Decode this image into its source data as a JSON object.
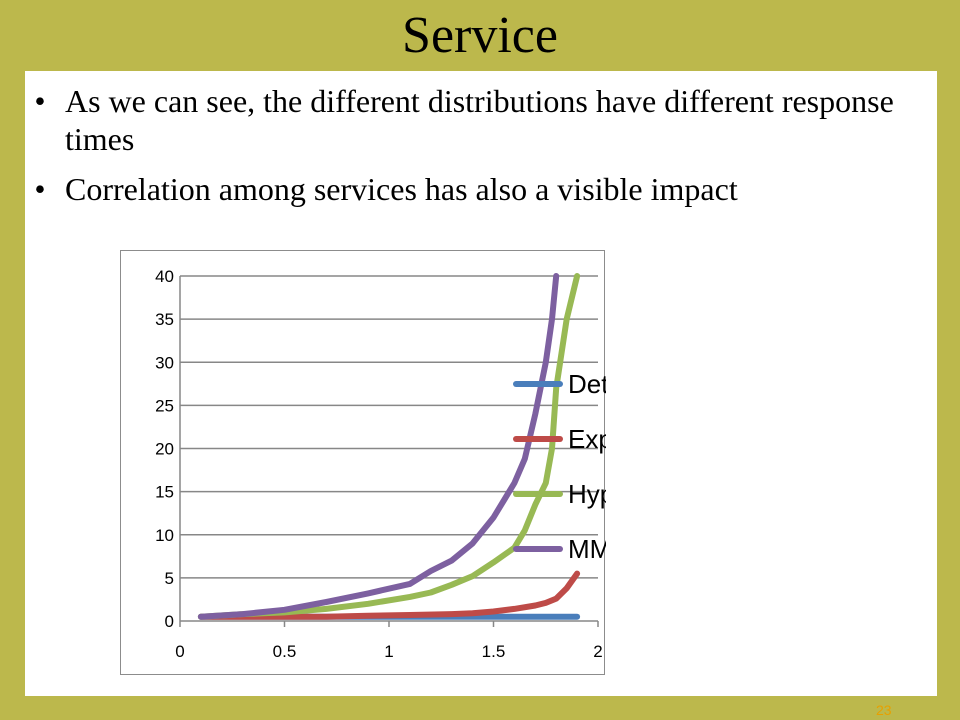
{
  "slide": {
    "title": "Service",
    "bullets": [
      "As we can see, the different distributions have different response times",
      "Correlation among services has also a visible impact"
    ],
    "page_number": "23",
    "colors": {
      "background": "#bcb84c",
      "panel": "#ffffff",
      "page_number": "#e8a000"
    }
  },
  "chart_data": {
    "type": "line",
    "title": "",
    "xlabel": "",
    "ylabel": "",
    "xlim": [
      0,
      2
    ],
    "ylim": [
      0,
      40
    ],
    "x_ticks": [
      "0",
      "0.5",
      "1",
      "1.5",
      "2"
    ],
    "y_ticks": [
      "0",
      "5",
      "10",
      "15",
      "20",
      "25",
      "30",
      "35",
      "40"
    ],
    "grid": "horizontal",
    "legend_position": "right",
    "series": [
      {
        "name": "Det",
        "color": "#4a7ebb",
        "points": [
          [
            0.1,
            0.5
          ],
          [
            0.3,
            0.5
          ],
          [
            0.5,
            0.5
          ],
          [
            0.7,
            0.5
          ],
          [
            0.9,
            0.5
          ],
          [
            1.1,
            0.5
          ],
          [
            1.3,
            0.5
          ],
          [
            1.5,
            0.5
          ],
          [
            1.7,
            0.5
          ],
          [
            1.9,
            0.5
          ]
        ]
      },
      {
        "name": "Exp",
        "color": "#be4b48",
        "points": [
          [
            0.1,
            0.5
          ],
          [
            0.3,
            0.5
          ],
          [
            0.5,
            0.5
          ],
          [
            0.7,
            0.5
          ],
          [
            0.9,
            0.6
          ],
          [
            1.1,
            0.7
          ],
          [
            1.3,
            0.8
          ],
          [
            1.4,
            0.9
          ],
          [
            1.5,
            1.1
          ],
          [
            1.6,
            1.4
          ],
          [
            1.7,
            1.8
          ],
          [
            1.75,
            2.1
          ],
          [
            1.8,
            2.6
          ],
          [
            1.85,
            3.8
          ],
          [
            1.9,
            5.5
          ]
        ]
      },
      {
        "name": "HyperExp",
        "color": "#98b954",
        "points": [
          [
            0.1,
            0.5
          ],
          [
            0.3,
            0.8
          ],
          [
            0.5,
            1.0
          ],
          [
            0.7,
            1.4
          ],
          [
            0.9,
            2.0
          ],
          [
            1.1,
            2.8
          ],
          [
            1.2,
            3.3
          ],
          [
            1.3,
            4.2
          ],
          [
            1.4,
            5.2
          ],
          [
            1.5,
            6.8
          ],
          [
            1.6,
            8.5
          ],
          [
            1.65,
            10.5
          ],
          [
            1.7,
            13.5
          ],
          [
            1.75,
            16.0
          ],
          [
            1.78,
            20.0
          ],
          [
            1.8,
            27.0
          ],
          [
            1.85,
            35.0
          ],
          [
            1.9,
            40.0
          ]
        ]
      },
      {
        "name": "MMPP",
        "color": "#7d60a0",
        "points": [
          [
            0.1,
            0.5
          ],
          [
            0.3,
            0.8
          ],
          [
            0.5,
            1.3
          ],
          [
            0.7,
            2.2
          ],
          [
            0.9,
            3.2
          ],
          [
            1.1,
            4.3
          ],
          [
            1.2,
            5.8
          ],
          [
            1.3,
            7.0
          ],
          [
            1.4,
            9.0
          ],
          [
            1.5,
            12.0
          ],
          [
            1.6,
            16.0
          ],
          [
            1.65,
            18.8
          ],
          [
            1.7,
            24.0
          ],
          [
            1.75,
            30.0
          ],
          [
            1.78,
            35.0
          ],
          [
            1.8,
            40.0
          ]
        ]
      }
    ]
  }
}
